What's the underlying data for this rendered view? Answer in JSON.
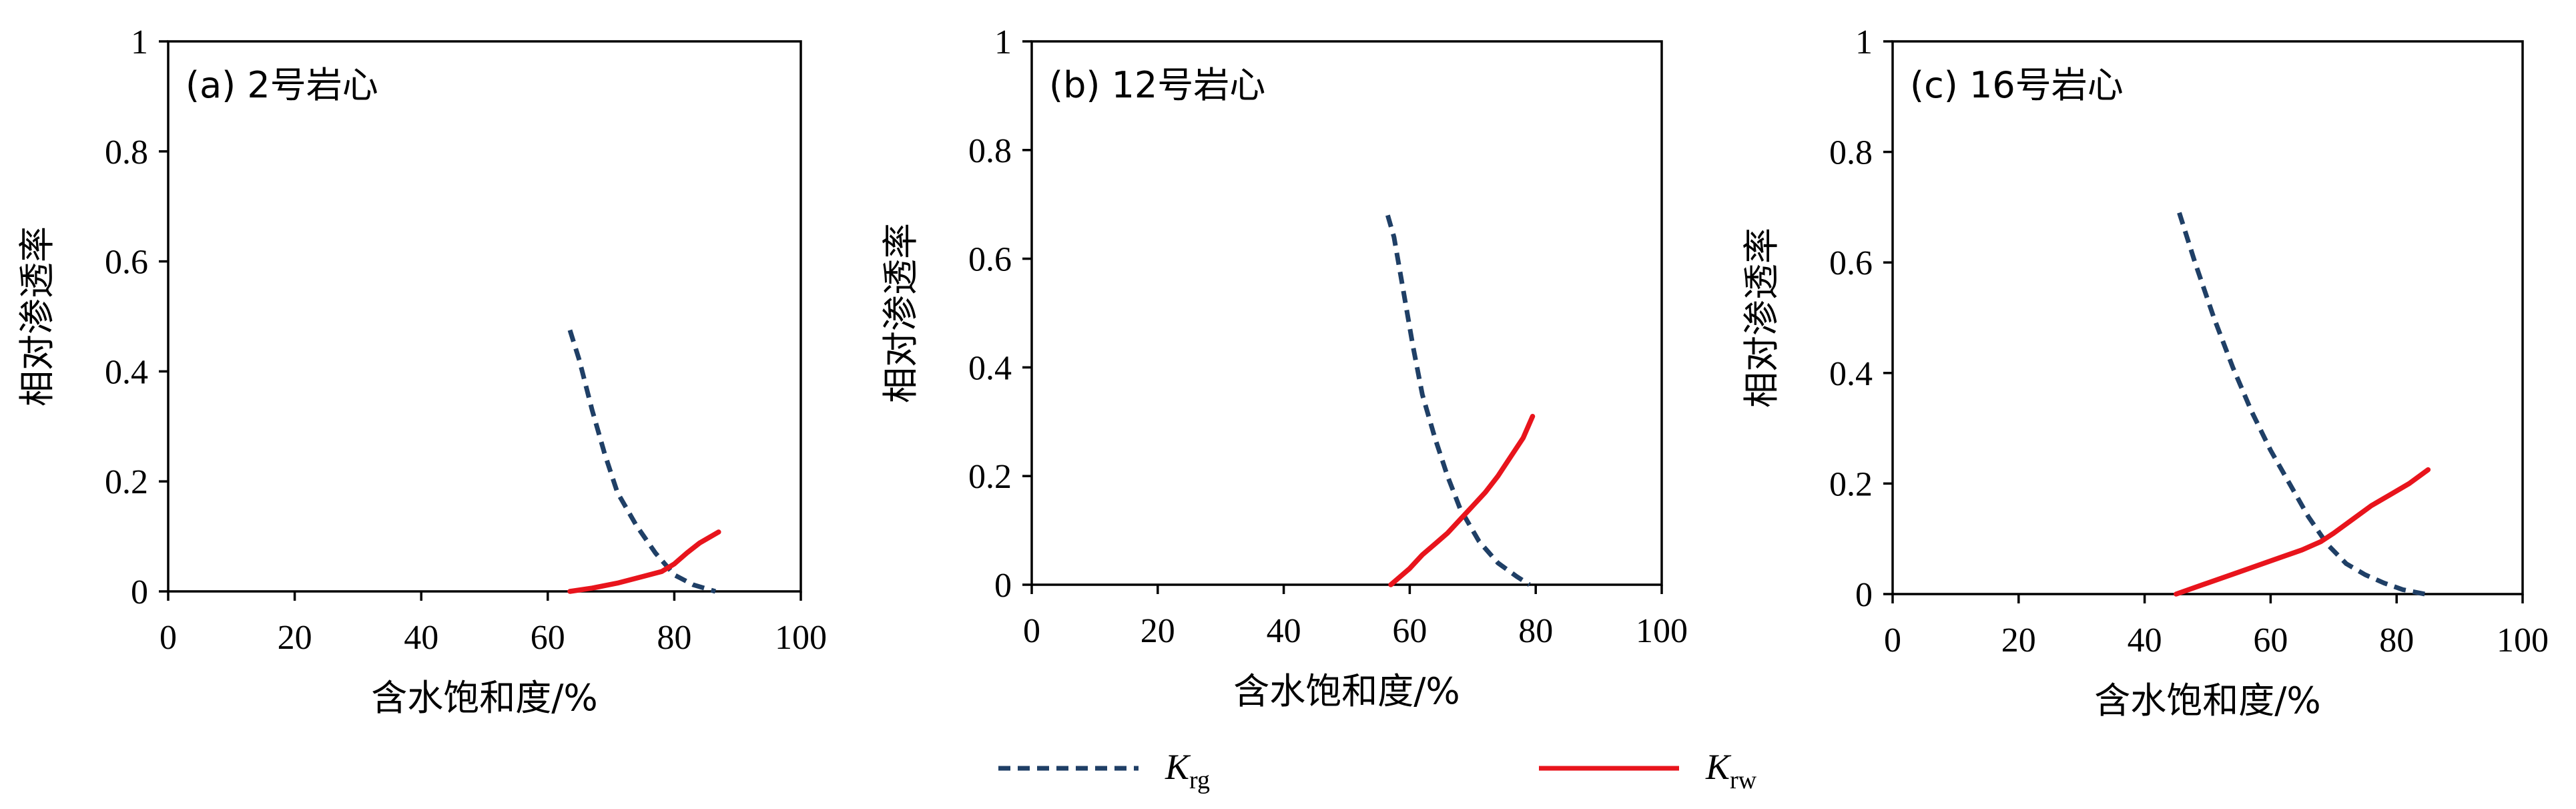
{
  "chart_data": [
    {
      "type": "line",
      "panel_label": "(a) 2号岩心",
      "xlabel": "含水饱和度/%",
      "ylabel": "相对渗透率",
      "xlim": [
        0,
        100
      ],
      "ylim": [
        0,
        1
      ],
      "xticks": [
        "0",
        "20",
        "40",
        "60",
        "80",
        "100"
      ],
      "yticks": [
        "0",
        "0.2",
        "0.4",
        "0.6",
        "0.8",
        "1"
      ],
      "grid": false,
      "series": [
        {
          "name": "Krg",
          "color": "#1f3f66",
          "dash": "dashed",
          "x": [
            63.5,
            65,
            67,
            69,
            71,
            74,
            77,
            80,
            83,
            86.5
          ],
          "y": [
            0.475,
            0.42,
            0.33,
            0.25,
            0.18,
            0.12,
            0.07,
            0.03,
            0.012,
            0.0
          ]
        },
        {
          "name": "Krw",
          "color": "#e8141c",
          "dash": "solid",
          "x": [
            63.5,
            67,
            71,
            75,
            78,
            80,
            82,
            84,
            87
          ],
          "y": [
            0.0,
            0.006,
            0.015,
            0.027,
            0.036,
            0.05,
            0.07,
            0.088,
            0.108
          ]
        }
      ]
    },
    {
      "type": "line",
      "panel_label": "(b) 12号岩心",
      "xlabel": "含水饱和度/%",
      "ylabel": "相对渗透率",
      "xlim": [
        0,
        100
      ],
      "ylim": [
        0,
        1
      ],
      "xticks": [
        "0",
        "20",
        "40",
        "60",
        "80",
        "100"
      ],
      "yticks": [
        "0",
        "0.2",
        "0.4",
        "0.6",
        "0.8",
        "1"
      ],
      "grid": false,
      "series": [
        {
          "name": "Krg",
          "color": "#1f3f66",
          "dash": "dashed",
          "x": [
            56.5,
            57.5,
            59,
            60.5,
            62,
            64,
            66,
            68,
            71,
            74,
            77,
            79
          ],
          "y": [
            0.68,
            0.64,
            0.54,
            0.44,
            0.35,
            0.27,
            0.2,
            0.14,
            0.08,
            0.04,
            0.015,
            0.0
          ]
        },
        {
          "name": "Krw",
          "color": "#e8141c",
          "dash": "solid",
          "x": [
            57,
            58.5,
            60,
            62,
            64,
            66,
            68,
            70,
            72,
            74,
            76,
            78,
            79.5
          ],
          "y": [
            0.0,
            0.015,
            0.03,
            0.055,
            0.075,
            0.095,
            0.12,
            0.145,
            0.17,
            0.2,
            0.235,
            0.27,
            0.31
          ]
        }
      ]
    },
    {
      "type": "line",
      "panel_label": "(c) 16号岩心",
      "xlabel": "含水饱和度/%",
      "ylabel": "相对渗透率",
      "xlim": [
        0,
        100
      ],
      "ylim": [
        0,
        1
      ],
      "xticks": [
        "0",
        "20",
        "40",
        "60",
        "80",
        "100"
      ],
      "yticks": [
        "0",
        "0.2",
        "0.4",
        "0.6",
        "0.8",
        "1"
      ],
      "grid": false,
      "series": [
        {
          "name": "Krg",
          "color": "#1f3f66",
          "dash": "dashed",
          "x": [
            45.5,
            48,
            51,
            54,
            57,
            60,
            63,
            66,
            69,
            72,
            75,
            78,
            81,
            84.5
          ],
          "y": [
            0.69,
            0.6,
            0.5,
            0.41,
            0.33,
            0.26,
            0.2,
            0.14,
            0.09,
            0.055,
            0.035,
            0.02,
            0.008,
            0.0
          ]
        },
        {
          "name": "Krw",
          "color": "#e8141c",
          "dash": "solid",
          "x": [
            45,
            50,
            55,
            60,
            65,
            68,
            70,
            73,
            76,
            79,
            82,
            85
          ],
          "y": [
            0.0,
            0.02,
            0.04,
            0.06,
            0.08,
            0.095,
            0.11,
            0.135,
            0.16,
            0.18,
            0.2,
            0.225
          ]
        }
      ]
    }
  ],
  "legend": {
    "placement": "bottom-center",
    "items": [
      {
        "main": "K",
        "sub": "rg",
        "color": "#1f3f66",
        "dash": "dashed"
      },
      {
        "main": "K",
        "sub": "rw",
        "color": "#e8141c",
        "dash": "solid"
      }
    ]
  }
}
